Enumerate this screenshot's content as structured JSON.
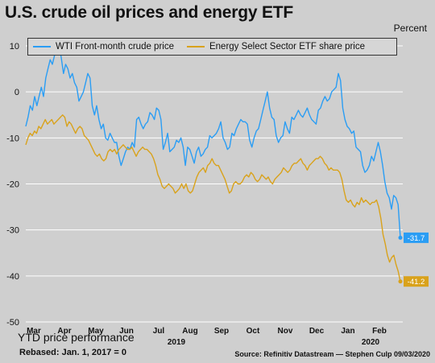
{
  "header": {
    "title": "U.S. crude oil prices and energy ETF",
    "unit": "Percent"
  },
  "footer": {
    "caption": "YTD price performance",
    "rebase": "Rebased: Jan. 1, 2017 = 0",
    "source": "Source: Refinitiv Datastream —  Stephen Culp 09/03/2020"
  },
  "colors": {
    "wti": "#2a9df4",
    "etf": "#d9a21b",
    "background": "#cfcfcf",
    "grid": "#ffffff"
  },
  "chart_data": {
    "type": "line",
    "y_unit": "Percent",
    "ylim": [
      -50,
      10
    ],
    "y_ticks": [
      10,
      0,
      -10,
      -20,
      -30,
      -40,
      -50
    ],
    "grid": true,
    "legend_position": "top",
    "x_tick_labels": [
      "Mar",
      "Apr",
      "May",
      "Jun",
      "Jul",
      "Aug",
      "Sep",
      "Oct",
      "Nov",
      "Dec",
      "Jan",
      "Feb"
    ],
    "x_year_labels": [
      "2019",
      "2020"
    ],
    "end_labels": [
      "-31.7",
      "-41.2"
    ],
    "series": [
      {
        "name": "WTI Front-month crude price",
        "color": "#2a9df4",
        "values": [
          -7.5,
          -5.5,
          -3,
          -4,
          -1,
          -3,
          -1,
          1,
          -1,
          3,
          5,
          7,
          6,
          8,
          9.5,
          10,
          7.5,
          4,
          6,
          5,
          3,
          4,
          2,
          1,
          -2,
          -1,
          0,
          2,
          4,
          3,
          -3,
          -5,
          -3,
          -6,
          -8,
          -7,
          -10,
          -10.5,
          -9,
          -10,
          -11,
          -11,
          -14,
          -16,
          -14.5,
          -13,
          -12,
          -12.5,
          -11,
          -12,
          -6,
          -5.5,
          -7,
          -8,
          -7,
          -6.5,
          -4.5,
          -5,
          -6,
          -3.5,
          -4,
          -6,
          -12.5,
          -11,
          -9,
          -13,
          -12.5,
          -12,
          -10.5,
          -11,
          -10,
          -12,
          -16,
          -12,
          -12.5,
          -14,
          -15.5,
          -13,
          -12,
          -14,
          -13.5,
          -12.5,
          -12,
          -9.5,
          -10,
          -9.5,
          -9,
          -8,
          -6.5,
          -10,
          -11,
          -12.5,
          -12,
          -9,
          -9.5,
          -8,
          -7,
          -6,
          -6.5,
          -6.5,
          -7,
          -10.5,
          -12,
          -10,
          -8.5,
          -8,
          -6,
          -4,
          -2,
          0,
          -3.5,
          -5.5,
          -6,
          -9.5,
          -11,
          -10,
          -9.5,
          -6.5,
          -8,
          -9,
          -5.5,
          -6,
          -5,
          -4,
          -5,
          -5.5,
          -4.5,
          -3.5,
          -5,
          -6,
          -6.5,
          -7,
          -4,
          -3.5,
          -2,
          -1,
          -2,
          -1.5,
          0,
          0.5,
          1,
          4,
          2.5,
          -3.5,
          -6,
          -7.5,
          -8,
          -9,
          -8.5,
          -12,
          -12.5,
          -13,
          -16,
          -17.5,
          -17,
          -16,
          -14,
          -15,
          -13,
          -11,
          -13,
          -16,
          -19.5,
          -22,
          -23,
          -25.5,
          -22.5,
          -23,
          -24.5,
          -31.7
        ]
      },
      {
        "name": "Energy Select Sector ETF share price",
        "color": "#d9a21b",
        "values": [
          -11.5,
          -10,
          -9,
          -9.5,
          -8.5,
          -9,
          -7.5,
          -8,
          -7,
          -6,
          -7,
          -6.5,
          -6,
          -7,
          -6.5,
          -6,
          -5.5,
          -5,
          -5.5,
          -7.5,
          -6.5,
          -7,
          -8,
          -9,
          -8,
          -7.5,
          -8,
          -9.5,
          -10,
          -10.5,
          -11.5,
          -12.5,
          -13.5,
          -14,
          -13.5,
          -14.5,
          -15,
          -14.5,
          -13,
          -12.5,
          -13,
          -12.5,
          -13.5,
          -12.5,
          -12,
          -11.5,
          -12,
          -12.5,
          -12.5,
          -12,
          -13,
          -14,
          -13,
          -12.5,
          -12,
          -12.5,
          -12.5,
          -13,
          -13.5,
          -14.5,
          -16,
          -18,
          -19,
          -20.5,
          -21,
          -20.5,
          -20,
          -20.5,
          -21,
          -22,
          -21.5,
          -21,
          -20,
          -21,
          -20,
          -21.5,
          -22,
          -21.5,
          -20,
          -18.5,
          -17.5,
          -17,
          -16.5,
          -17.5,
          -16,
          -15.5,
          -14.5,
          -15.5,
          -16,
          -16,
          -17,
          -18,
          -19,
          -20.5,
          -22,
          -21.5,
          -20,
          -19.5,
          -20,
          -20,
          -19.5,
          -18.5,
          -18,
          -18.5,
          -17.5,
          -18,
          -19,
          -19.5,
          -19,
          -18,
          -18.5,
          -19,
          -18.5,
          -19.5,
          -20,
          -19,
          -18.5,
          -18,
          -17.5,
          -16.5,
          -17,
          -17.5,
          -17,
          -16,
          -15.5,
          -15.5,
          -15,
          -14.5,
          -15.5,
          -16,
          -17,
          -16,
          -15.5,
          -15,
          -14.5,
          -14.5,
          -14,
          -14.5,
          -15.5,
          -16,
          -17,
          -16.5,
          -17,
          -17,
          -17,
          -17.5,
          -19,
          -21.5,
          -23.5,
          -24,
          -23.5,
          -24.5,
          -25,
          -24,
          -24.5,
          -23,
          -24,
          -23.5,
          -24,
          -24.5,
          -24,
          -24,
          -23.5,
          -25,
          -27.5,
          -31,
          -33,
          -35.5,
          -37,
          -36,
          -35.5,
          -37.5,
          -39,
          -41.2
        ]
      }
    ]
  }
}
